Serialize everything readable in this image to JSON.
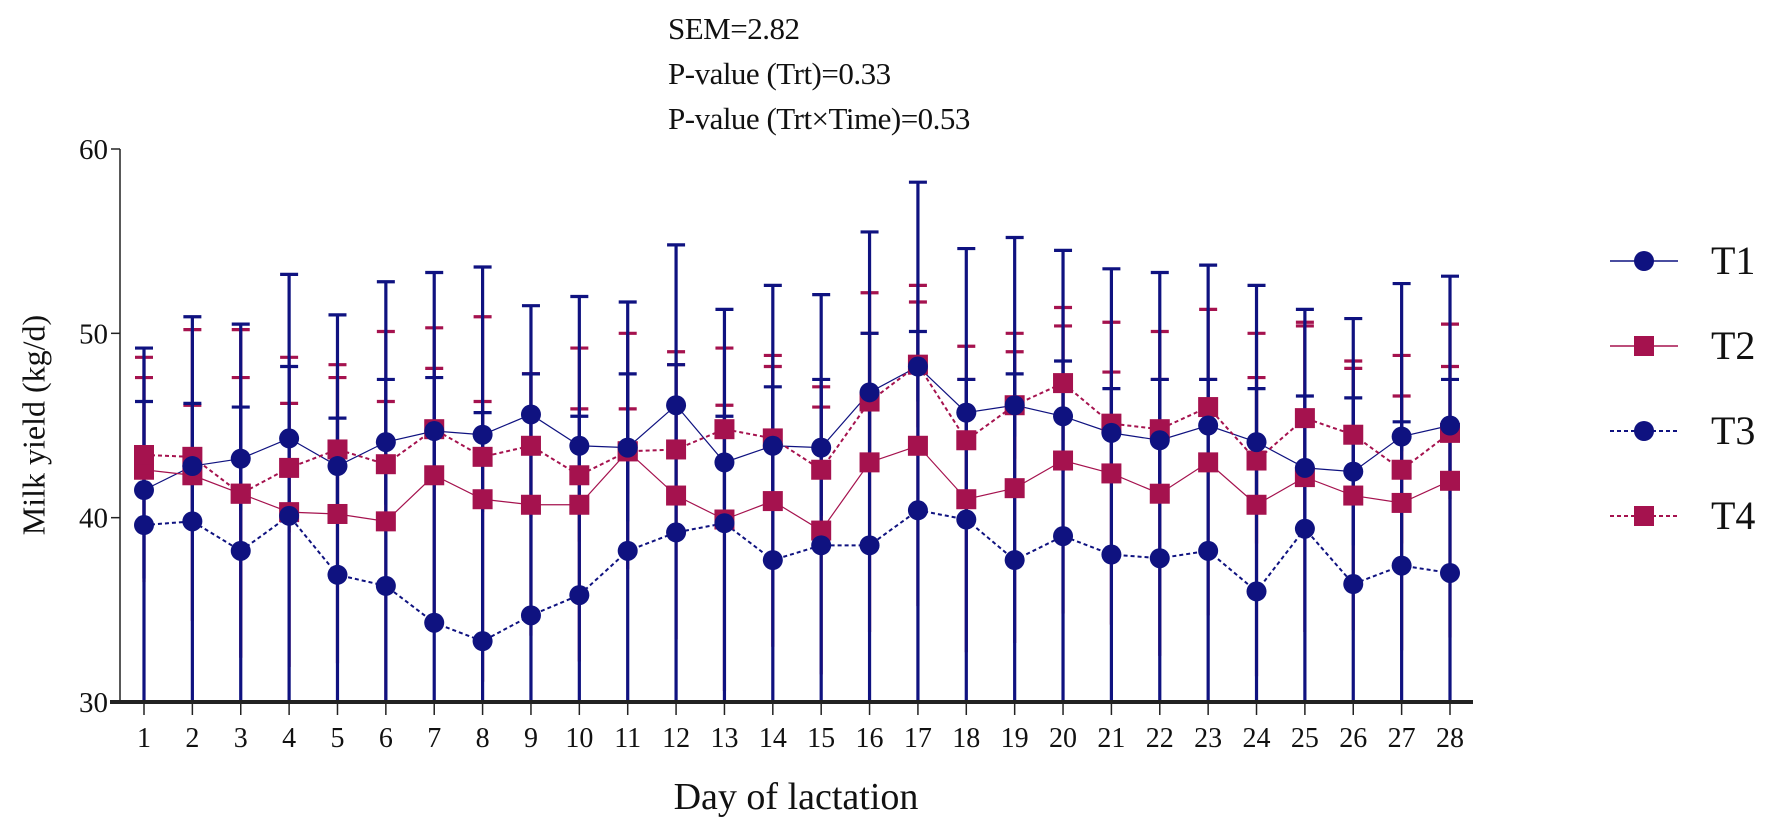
{
  "stats": {
    "sem": "SEM=2.82",
    "p_trt": "P-value (Trt)=0.33",
    "p_trt_time": "P-value (Trt×Time)=0.53"
  },
  "colors": {
    "t1": "#0f1280",
    "t2": "#a5124e",
    "t3": "#0f1280",
    "t4": "#a5124e",
    "axis": "#222222"
  },
  "chart_data": {
    "type": "line",
    "title": "",
    "xlabel": "Day of lactation",
    "ylabel": "Milk yield (kg/d)",
    "ylim": [
      30,
      60
    ],
    "yticks": [
      "30",
      "40",
      "50",
      "60"
    ],
    "x": [
      1,
      2,
      3,
      4,
      5,
      6,
      7,
      8,
      9,
      10,
      11,
      12,
      13,
      14,
      15,
      16,
      17,
      18,
      19,
      20,
      21,
      22,
      23,
      24,
      25,
      26,
      27,
      28
    ],
    "legend_position": "right",
    "series": [
      {
        "name": "T1",
        "marker": "circle",
        "line": "solid",
        "values": [
          41.5,
          42.8,
          43.2,
          44.3,
          42.8,
          44.1,
          44.7,
          44.5,
          45.6,
          43.9,
          43.8,
          46.1,
          43.0,
          43.9,
          43.8,
          46.8,
          48.2,
          45.7,
          46.1,
          45.5,
          44.6,
          44.2,
          45.0,
          44.1,
          42.7,
          42.5,
          44.4,
          45.0
        ],
        "error": [
          4.8,
          3.4,
          2.8,
          3.9,
          2.6,
          3.4,
          2.9,
          1.2,
          2.2,
          1.6,
          4.0,
          2.2,
          2.5,
          3.2,
          3.7,
          3.2,
          1.9,
          1.8,
          1.7,
          3.0,
          2.4,
          3.3,
          2.5,
          2.9,
          3.9,
          4.0,
          0.8,
          2.5
        ]
      },
      {
        "name": "T2",
        "marker": "square",
        "line": "solid",
        "values": [
          42.6,
          42.3,
          41.3,
          40.3,
          40.2,
          39.8,
          42.3,
          41.0,
          40.7,
          40.7,
          43.6,
          41.2,
          39.9,
          40.9,
          39.3,
          43.0,
          43.9,
          41.0,
          41.6,
          43.1,
          42.4,
          41.3,
          43.0,
          40.7,
          42.2,
          41.2,
          40.8,
          42.0
        ],
        "error": [
          6.1,
          7.9,
          8.9,
          8.4,
          8.1,
          10.3,
          8.0,
          9.9,
          7.1,
          8.5,
          6.4,
          7.8,
          9.3,
          7.9,
          7.8,
          9.2,
          8.7,
          8.3,
          8.4,
          8.3,
          8.2,
          8.8,
          8.3,
          9.3,
          8.4,
          7.3,
          8.0,
          8.5
        ]
      },
      {
        "name": "T3",
        "marker": "circle",
        "line": "dashed",
        "values": [
          39.6,
          39.8,
          38.2,
          40.1,
          36.9,
          36.3,
          34.3,
          33.3,
          34.7,
          35.8,
          38.2,
          39.2,
          39.7,
          37.7,
          38.5,
          38.5,
          40.4,
          39.9,
          37.7,
          39.0,
          38.0,
          37.8,
          38.2,
          36.0,
          39.4,
          36.4,
          37.4,
          37.0
        ],
        "error": [
          9.6,
          11.1,
          12.3,
          13.1,
          14.1,
          16.5,
          19.0,
          20.3,
          16.8,
          16.2,
          13.5,
          15.6,
          11.6,
          14.9,
          13.6,
          17.0,
          17.8,
          14.7,
          17.5,
          15.5,
          15.5,
          15.5,
          15.5,
          16.6,
          11.9,
          14.4,
          15.3,
          16.1
        ]
      },
      {
        "name": "T4",
        "marker": "square",
        "line": "dashed",
        "values": [
          43.4,
          43.3,
          41.3,
          42.7,
          43.7,
          42.9,
          44.8,
          43.3,
          43.9,
          42.3,
          43.6,
          43.7,
          44.8,
          44.3,
          42.6,
          46.3,
          48.3,
          44.2,
          46.1,
          47.3,
          45.1,
          44.8,
          46.0,
          43.1,
          45.4,
          44.5,
          42.6,
          44.6
        ],
        "error": [
          4.2,
          2.8,
          6.3,
          3.5,
          3.9,
          3.4,
          3.3,
          3.0,
          3.9,
          3.6,
          2.3,
          4.6,
          1.3,
          3.9,
          3.4,
          3.7,
          3.4,
          3.3,
          2.9,
          3.1,
          2.8,
          2.7,
          1.5,
          4.5,
          5.0,
          3.6,
          4.0,
          3.6
        ]
      }
    ]
  }
}
